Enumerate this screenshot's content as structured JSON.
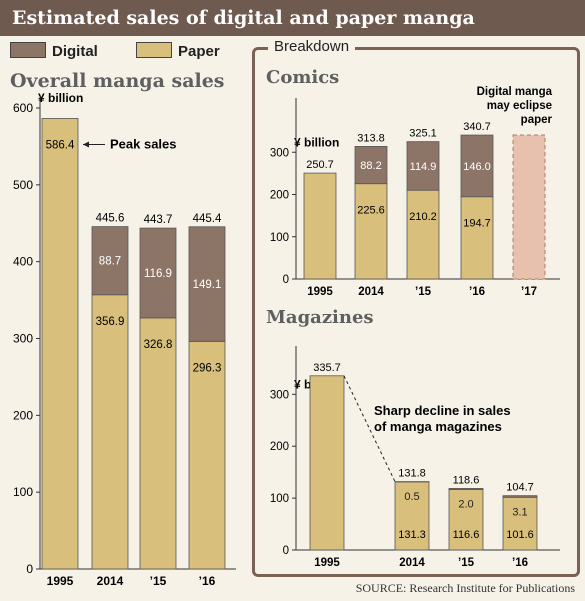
{
  "header": {
    "title": "Estimated sales of digital and paper manga"
  },
  "legend": {
    "digital_label": "Digital",
    "paper_label": "Paper"
  },
  "colors": {
    "digital": "#8c7567",
    "paper": "#d8bf7c",
    "projected": "#e8c1ae",
    "frame": "#7a6254"
  },
  "breakdown_label": "Breakdown",
  "source": "SOURCE: Research Institute for Publications",
  "chart_data": [
    {
      "type": "bar",
      "stacked": true,
      "title": "Overall manga sales",
      "unit": "¥ billion",
      "categories": [
        "1995",
        "2014",
        "’15",
        "’16"
      ],
      "ylim": [
        0,
        600
      ],
      "ticks": [
        0,
        100,
        200,
        300,
        400,
        500,
        600
      ],
      "series": [
        {
          "name": "Paper",
          "values": [
            586.4,
            356.9,
            326.8,
            296.3
          ]
        },
        {
          "name": "Digital",
          "values": [
            0,
            88.7,
            116.9,
            149.1
          ]
        }
      ],
      "totals": [
        "586.4",
        "445.6",
        "443.7",
        "445.4"
      ],
      "annotations": [
        {
          "text": "Peak sales",
          "category": "1995"
        }
      ]
    },
    {
      "type": "bar",
      "stacked": true,
      "title": "Comics",
      "unit": "¥ billion",
      "categories": [
        "1995",
        "2014",
        "’15",
        "’16",
        "’17"
      ],
      "ylim": [
        0,
        400
      ],
      "ticks": [
        0,
        100,
        200,
        300
      ],
      "series": [
        {
          "name": "Paper",
          "values": [
            250.7,
            225.6,
            210.2,
            194.7,
            null
          ]
        },
        {
          "name": "Digital",
          "values": [
            0,
            88.2,
            114.9,
            146.0,
            null
          ]
        }
      ],
      "totals": [
        "250.7",
        "313.8",
        "325.1",
        "340.7",
        ""
      ],
      "projected": {
        "category": "’17",
        "value": 340.7
      },
      "annotations": [
        {
          "text": "Digital manga may eclipse paper",
          "category": "’17"
        }
      ]
    },
    {
      "type": "bar",
      "stacked": true,
      "title": "Magazines",
      "unit": "¥ billion",
      "categories": [
        "1995",
        "2014",
        "’15",
        "’16"
      ],
      "ylim": [
        0,
        370
      ],
      "ticks": [
        0,
        100,
        200,
        300
      ],
      "series": [
        {
          "name": "Paper",
          "values": [
            335.7,
            131.3,
            116.6,
            101.6
          ]
        },
        {
          "name": "Digital",
          "values": [
            0,
            0.5,
            2.0,
            3.1
          ]
        }
      ],
      "totals": [
        "335.7",
        "131.8",
        "118.6",
        "104.7"
      ],
      "annotations": [
        {
          "text": "Sharp decline in sales of manga magazines",
          "category": "1995"
        }
      ]
    }
  ]
}
